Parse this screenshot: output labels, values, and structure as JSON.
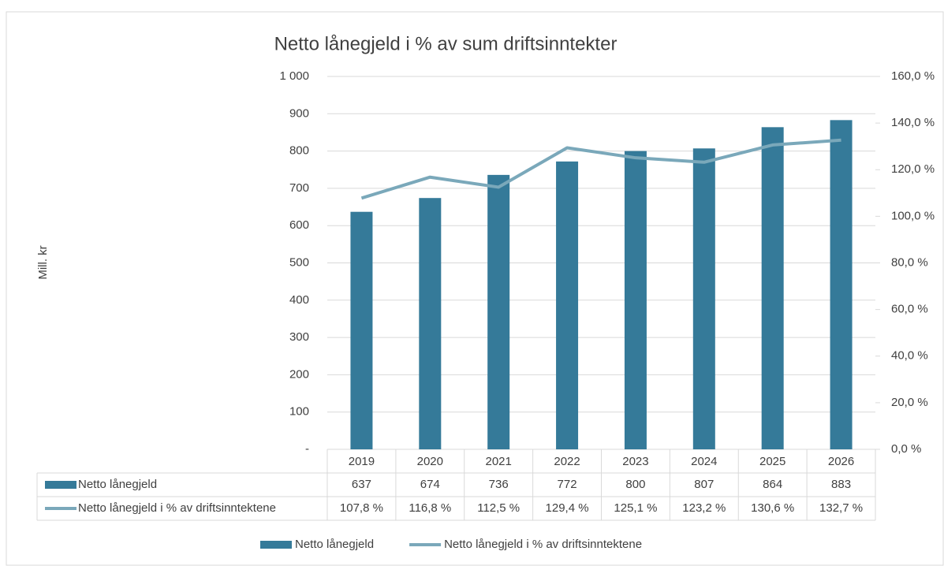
{
  "chart_data": {
    "type": "bar",
    "title": "Netto lånegjeld i % av sum driftsinntekter",
    "y_label": "Mill. kr",
    "categories": [
      "2019",
      "2020",
      "2021",
      "2022",
      "2023",
      "2024",
      "2025",
      "2026"
    ],
    "series": [
      {
        "name": "Netto lånegjeld",
        "type": "bar",
        "color": "#357a99",
        "values": [
          637,
          674,
          736,
          772,
          800,
          807,
          864,
          883
        ]
      },
      {
        "name": "Netto lånegjeld i % av driftsinntektene",
        "type": "line",
        "axis": "y2",
        "color": "#7aa8ba",
        "values": [
          107.8,
          116.8,
          112.5,
          129.4,
          125.1,
          123.2,
          130.6,
          132.7
        ],
        "value_labels": [
          "107,8 %",
          "116,8 %",
          "112,5 %",
          "129,4 %",
          "125,1 %",
          "123,2 %",
          "130,6 %",
          "132,7 %"
        ]
      }
    ],
    "ylim": [
      0,
      1000
    ],
    "yticks": [
      {
        "value": 0,
        "label": "-"
      },
      100,
      200,
      300,
      400,
      500,
      600,
      700,
      800,
      900,
      {
        "value": 1000,
        "label": "1 000"
      }
    ],
    "y2lim": [
      0,
      160
    ],
    "y2ticks": [
      {
        "value": 0,
        "label": "0,0 %"
      },
      {
        "value": 20,
        "label": "20,0 %"
      },
      {
        "value": 40,
        "label": "40,0 %"
      },
      {
        "value": 60,
        "label": "60,0 %"
      },
      {
        "value": 80,
        "label": "80,0 %"
      },
      {
        "value": 100,
        "label": "100,0 %"
      },
      {
        "value": 120,
        "label": "120,0 %"
      },
      {
        "value": 140,
        "label": "140,0 %"
      },
      {
        "value": 160,
        "label": "160,0 %"
      }
    ],
    "grid": true,
    "legend": "bottom"
  }
}
